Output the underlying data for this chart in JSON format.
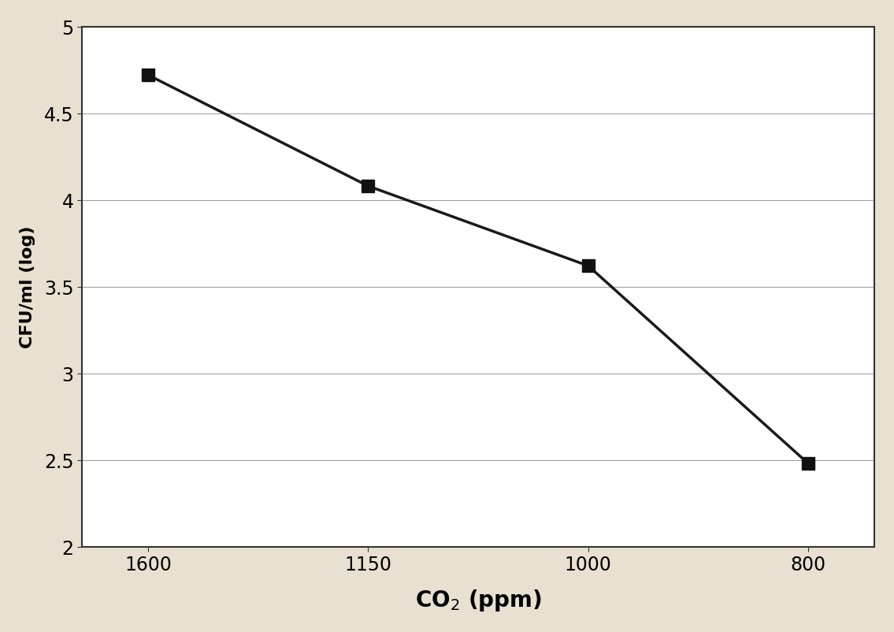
{
  "x_categories": [
    "1600",
    "1150",
    "1000",
    "800"
  ],
  "y": [
    4.72,
    4.08,
    3.62,
    2.48
  ],
  "ylim": [
    2.0,
    5.0
  ],
  "yticks": [
    2.0,
    2.5,
    3.0,
    3.5,
    4.0,
    4.5,
    5.0
  ],
  "ytick_labels": [
    "2",
    "2.5",
    "3",
    "3.5",
    "4",
    "4.5",
    "5"
  ],
  "xlabel": "CO$_2$ (ppm)",
  "ylabel": "CFU/ml (log)",
  "line_color": "#1a1a1a",
  "marker_color": "#111111",
  "marker": "s",
  "marker_size": 11,
  "line_width": 2.5,
  "background_color": "#ffffff",
  "outer_background": "#e8e0d0",
  "grid_color": "#888888",
  "grid_linestyle": "-",
  "grid_linewidth": 0.6,
  "xlabel_fontsize": 20,
  "ylabel_fontsize": 16,
  "tick_fontsize": 17,
  "spine_color": "#333333",
  "spine_linewidth": 1.5
}
